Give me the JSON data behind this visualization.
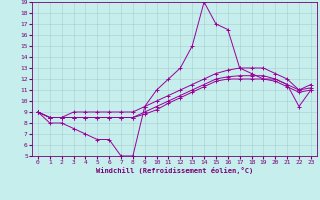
{
  "xlabel": "Windchill (Refroidissement éolien,°C)",
  "bg_color": "#c5eeec",
  "line_color": "#990099",
  "xlim": [
    -0.5,
    23.5
  ],
  "ylim": [
    5,
    19
  ],
  "xticks": [
    0,
    1,
    2,
    3,
    4,
    5,
    6,
    7,
    8,
    9,
    10,
    11,
    12,
    13,
    14,
    15,
    16,
    17,
    18,
    19,
    20,
    21,
    22,
    23
  ],
  "yticks": [
    5,
    6,
    7,
    8,
    9,
    10,
    11,
    12,
    13,
    14,
    15,
    16,
    17,
    18,
    19
  ],
  "lines": [
    {
      "x": [
        0,
        1,
        2,
        3,
        4,
        5,
        6,
        7,
        8,
        9,
        10,
        11,
        12,
        13,
        14,
        15,
        16,
        17,
        18,
        19,
        20,
        21,
        22,
        23
      ],
      "y": [
        9,
        8,
        8,
        7.5,
        7,
        6.5,
        6.5,
        5,
        5,
        9.5,
        11,
        12,
        13,
        15,
        19,
        17,
        16.5,
        13,
        12.5,
        12,
        12,
        11.5,
        9.5,
        11
      ]
    },
    {
      "x": [
        0,
        1,
        2,
        3,
        4,
        5,
        6,
        7,
        8,
        9,
        10,
        11,
        12,
        13,
        14,
        15,
        16,
        17,
        18,
        19,
        20,
        21,
        22,
        23
      ],
      "y": [
        9,
        8.5,
        8.5,
        9,
        9,
        9,
        9,
        9,
        9,
        9.5,
        10,
        10.5,
        11,
        11.5,
        12,
        12.5,
        12.8,
        13,
        13,
        13,
        12.5,
        12,
        11,
        11.5
      ]
    },
    {
      "x": [
        0,
        1,
        2,
        3,
        4,
        5,
        6,
        7,
        8,
        9,
        10,
        11,
        12,
        13,
        14,
        15,
        16,
        17,
        18,
        19,
        20,
        21,
        22,
        23
      ],
      "y": [
        9,
        8.5,
        8.5,
        8.5,
        8.5,
        8.5,
        8.5,
        8.5,
        8.5,
        9,
        9.5,
        10,
        10.5,
        11,
        11.5,
        12,
        12.2,
        12.3,
        12.3,
        12.3,
        12,
        11.5,
        11,
        11.2
      ]
    },
    {
      "x": [
        0,
        1,
        2,
        3,
        4,
        5,
        6,
        7,
        8,
        9,
        10,
        11,
        12,
        13,
        14,
        15,
        16,
        17,
        18,
        19,
        20,
        21,
        22,
        23
      ],
      "y": [
        9,
        8.5,
        8.5,
        8.5,
        8.5,
        8.5,
        8.5,
        8.5,
        8.5,
        8.8,
        9.2,
        9.8,
        10.3,
        10.8,
        11.3,
        11.8,
        12,
        12,
        12,
        12,
        11.8,
        11.3,
        10.8,
        11
      ]
    }
  ]
}
